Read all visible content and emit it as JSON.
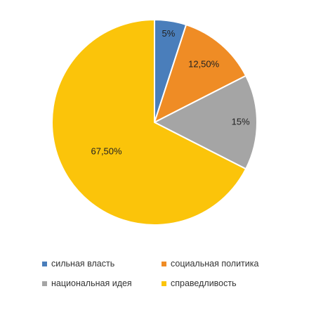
{
  "chart_data": {
    "type": "pie",
    "slices": [
      {
        "name": "сильная власть",
        "value": 5,
        "label": "5%",
        "color": "#4a7ebb"
      },
      {
        "name": "социальная политика",
        "value": 12.5,
        "label": "12,50%",
        "color": "#ef8c25"
      },
      {
        "name": "национальная идея",
        "value": 15,
        "label": "15%",
        "color": "#a5a5a5"
      },
      {
        "name": "справедливость",
        "value": 67.5,
        "label": "67,50%",
        "color": "#fbc40a"
      }
    ],
    "start_angle": "12 o'clock",
    "direction": "clockwise",
    "legend_position": "bottom"
  }
}
